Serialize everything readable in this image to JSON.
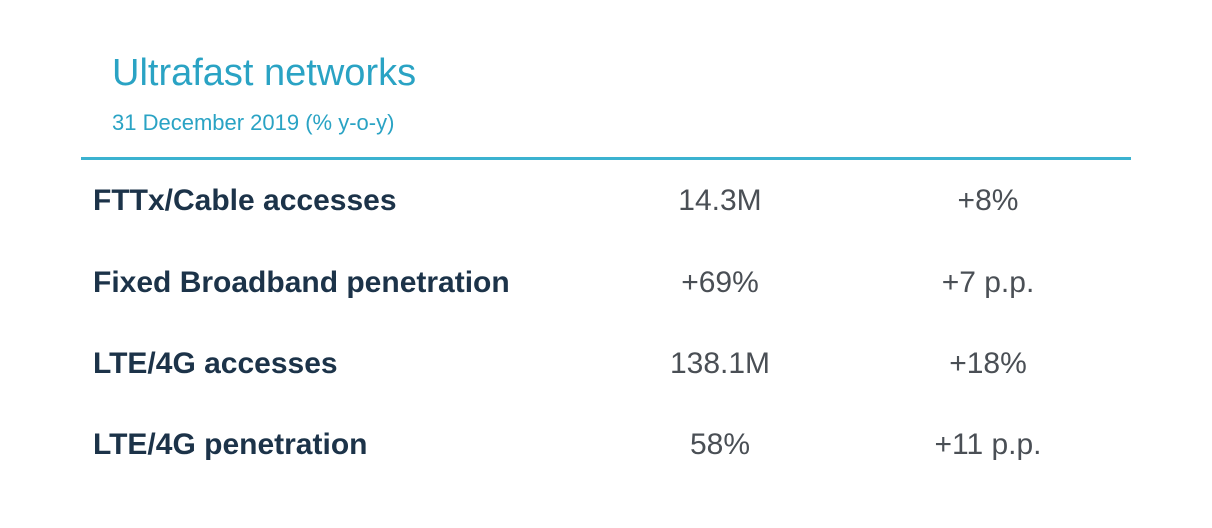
{
  "header": {
    "title": "Ultrafast networks",
    "subtitle": "31 December 2019 (% y-o-y)"
  },
  "table": {
    "rows": [
      {
        "metric": "FTTx/Cable accesses",
        "value": "14.3M",
        "change": "+8%"
      },
      {
        "metric": "Fixed Broadband penetration",
        "value": "+69%",
        "change": "+7 p.p."
      },
      {
        "metric": "LTE/4G accesses",
        "value": "138.1M",
        "change": "+18%"
      },
      {
        "metric": "LTE/4G penetration",
        "value": "58%",
        "change": "+11 p.p."
      }
    ]
  },
  "colors": {
    "accent": "#2aa3c4",
    "metric_text": "#1c3349",
    "value_text": "#4a4f55"
  }
}
